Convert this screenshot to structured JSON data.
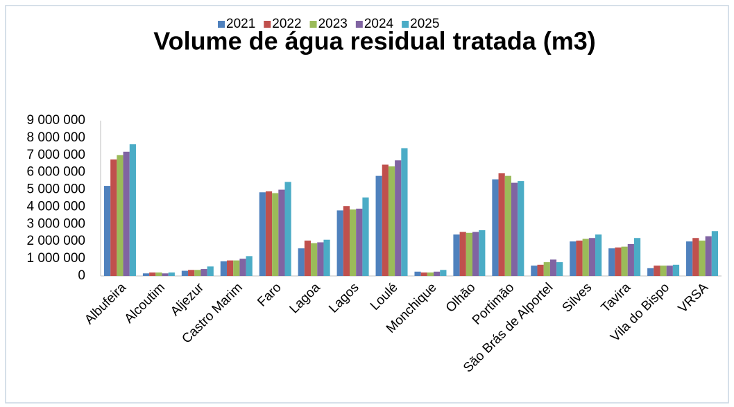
{
  "chart_data": {
    "type": "bar",
    "title": "Volume de água residual tratada (m3)",
    "categories": [
      "Albufeira",
      "Alcoutim",
      "Aljezur",
      "Castro Marim",
      "Faro",
      "Lagoa",
      "Lagos",
      "Loulé",
      "Monchique",
      "Olhão",
      "Portimão",
      "São Brás de Alportel",
      "Silves",
      "Tavira",
      "Vila do Bispo",
      "VRSA"
    ],
    "series": [
      {
        "name": "2021",
        "color": "#4f81bd",
        "values": [
          5220000,
          150000,
          300000,
          850000,
          4850000,
          1600000,
          3800000,
          5800000,
          250000,
          2400000,
          5600000,
          600000,
          2000000,
          1600000,
          450000,
          2000000
        ]
      },
      {
        "name": "2022",
        "color": "#c0504d",
        "values": [
          6750000,
          200000,
          350000,
          900000,
          4900000,
          2050000,
          4050000,
          6450000,
          200000,
          2550000,
          5950000,
          650000,
          2050000,
          1650000,
          600000,
          2200000
        ]
      },
      {
        "name": "2023",
        "color": "#9bbb59",
        "values": [
          7000000,
          200000,
          350000,
          900000,
          4800000,
          1900000,
          3850000,
          6350000,
          200000,
          2500000,
          5800000,
          800000,
          2150000,
          1700000,
          600000,
          2050000
        ]
      },
      {
        "name": "2024",
        "color": "#8064a2",
        "values": [
          7200000,
          150000,
          400000,
          1000000,
          5000000,
          1950000,
          3900000,
          6700000,
          250000,
          2550000,
          5400000,
          950000,
          2200000,
          1850000,
          600000,
          2300000
        ]
      },
      {
        "name": "2025",
        "color": "#4bacc6",
        "values": [
          7630000,
          200000,
          550000,
          1150000,
          5450000,
          2100000,
          4550000,
          7400000,
          350000,
          2650000,
          5500000,
          800000,
          2400000,
          2200000,
          650000,
          2600000
        ]
      }
    ],
    "ylim": [
      0,
      9000000
    ],
    "yticks": [
      0,
      {
        "value": 1000000,
        "label": "1 000 000"
      },
      {
        "value": 2000000,
        "label": "2 000 000"
      },
      {
        "value": 3000000,
        "label": "3 000 000"
      },
      {
        "value": 4000000,
        "label": "4 000 000"
      },
      {
        "value": 5000000,
        "label": "5 000 000"
      },
      {
        "value": 6000000,
        "label": "6 000 000"
      },
      {
        "value": 7000000,
        "label": "7 000 000"
      },
      {
        "value": 8000000,
        "label": "8 000 000"
      },
      {
        "value": 9000000,
        "label": "9 000 000"
      }
    ],
    "grid": false,
    "legend": "top"
  }
}
